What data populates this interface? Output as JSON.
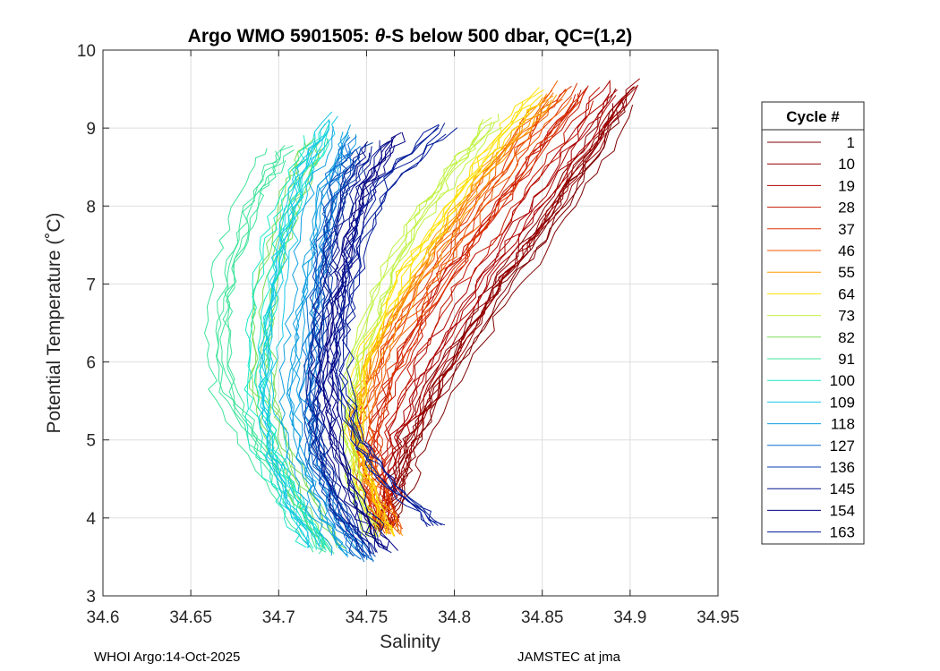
{
  "chart_data": {
    "type": "line",
    "title_prefix": "Argo WMO 5901505: ",
    "title_theta": "θ",
    "title_suffix": "-S below 500 dbar,  QC=(1,2)",
    "xlabel": "Salinity",
    "ylabel": "Potential Temperature (˚C)",
    "xlim": [
      34.6,
      34.95
    ],
    "ylim": [
      3,
      10
    ],
    "xticks": [
      34.6,
      34.65,
      34.7,
      34.75,
      34.8,
      34.85,
      34.9,
      34.95
    ],
    "xtick_labels": [
      "34.6",
      "34.65",
      "34.7",
      "34.75",
      "34.8",
      "34.85",
      "34.9",
      "34.95"
    ],
    "yticks": [
      3,
      4,
      5,
      6,
      7,
      8,
      9,
      10
    ],
    "ytick_labels": [
      "3",
      "4",
      "5",
      "6",
      "7",
      "8",
      "9",
      "10"
    ],
    "grid": true,
    "legend_title": "Cycle #",
    "legend_position": "outside-right",
    "series": [
      {
        "name": "1",
        "color": "#7f0000",
        "salinity": [
          34.761,
          34.769,
          34.777,
          34.795,
          34.823,
          34.849,
          34.875,
          34.896
        ],
        "theta": [
          3.82,
          4.4,
          5.0,
          5.8,
          6.8,
          7.6,
          8.5,
          9.4
        ]
      },
      {
        "name": "10",
        "color": "#950000",
        "salinity": [
          34.758,
          34.765,
          34.773,
          34.79,
          34.817,
          34.843,
          34.87,
          34.9
        ],
        "theta": [
          3.86,
          4.45,
          5.05,
          5.85,
          6.85,
          7.7,
          8.6,
          9.6
        ]
      },
      {
        "name": "19",
        "color": "#ab0000",
        "salinity": [
          34.754,
          34.76,
          34.767,
          34.783,
          34.808,
          34.834,
          34.862,
          34.89
        ],
        "theta": [
          3.84,
          4.45,
          5.1,
          5.9,
          6.85,
          7.7,
          8.6,
          9.5
        ]
      },
      {
        "name": "28",
        "color": "#c31500",
        "salinity": [
          34.76,
          34.755,
          34.758,
          34.772,
          34.795,
          34.822,
          34.85,
          34.878
        ],
        "theta": [
          3.9,
          4.5,
          5.15,
          5.95,
          6.9,
          7.75,
          8.6,
          9.45
        ]
      },
      {
        "name": "37",
        "color": "#dc3200",
        "salinity": [
          34.762,
          34.752,
          34.75,
          34.763,
          34.787,
          34.812,
          34.84,
          34.868
        ],
        "theta": [
          3.88,
          4.5,
          5.15,
          6.0,
          6.95,
          7.8,
          8.7,
          9.5
        ]
      },
      {
        "name": "46",
        "color": "#f05a00",
        "salinity": [
          34.764,
          34.751,
          34.746,
          34.757,
          34.781,
          34.806,
          34.832,
          34.86
        ],
        "theta": [
          3.8,
          4.5,
          5.15,
          6.05,
          7.0,
          7.85,
          8.75,
          9.5
        ]
      },
      {
        "name": "55",
        "color": "#ff9a00",
        "salinity": [
          34.766,
          34.752,
          34.744,
          34.755,
          34.778,
          34.802,
          34.828,
          34.856
        ],
        "theta": [
          3.78,
          4.5,
          5.2,
          6.1,
          7.05,
          7.9,
          8.75,
          9.45
        ]
      },
      {
        "name": "64",
        "color": "#ffe000",
        "salinity": [
          34.762,
          34.75,
          34.743,
          34.75,
          34.77,
          34.795,
          34.82,
          34.846
        ],
        "theta": [
          3.76,
          4.45,
          5.2,
          6.1,
          7.05,
          7.9,
          8.7,
          9.4
        ]
      },
      {
        "name": "73",
        "color": "#bff23f",
        "salinity": [
          34.75,
          34.742,
          34.737,
          34.742,
          34.758,
          34.778,
          34.8,
          34.82
        ],
        "theta": [
          3.75,
          4.4,
          5.2,
          6.1,
          7.05,
          7.9,
          8.55,
          9.1
        ]
      },
      {
        "name": "82",
        "color": "#7fdd5a",
        "salinity": [
          34.73,
          34.715,
          34.7,
          34.69,
          34.69,
          34.698,
          34.71,
          34.72
        ],
        "theta": [
          3.6,
          4.2,
          4.9,
          5.7,
          6.6,
          7.5,
          8.3,
          8.8
        ]
      },
      {
        "name": "91",
        "color": "#3fe39a",
        "salinity": [
          34.725,
          34.708,
          34.688,
          34.668,
          34.664,
          34.672,
          34.685,
          34.7
        ],
        "theta": [
          3.55,
          4.1,
          4.8,
          5.6,
          6.5,
          7.4,
          8.2,
          8.7
        ]
      },
      {
        "name": "100",
        "color": "#19e8c8",
        "salinity": [
          34.72,
          34.706,
          34.692,
          34.685,
          34.688,
          34.695,
          34.708,
          34.722
        ],
        "theta": [
          3.6,
          4.2,
          4.9,
          5.7,
          6.6,
          7.5,
          8.3,
          9.0
        ]
      },
      {
        "name": "109",
        "color": "#17c8e6",
        "salinity": [
          34.722,
          34.708,
          34.698,
          34.695,
          34.698,
          34.705,
          34.715,
          34.732
        ],
        "theta": [
          3.62,
          4.2,
          4.9,
          5.7,
          6.6,
          7.5,
          8.4,
          9.1
        ]
      },
      {
        "name": "118",
        "color": "#0f9fe0",
        "salinity": [
          34.74,
          34.724,
          34.712,
          34.708,
          34.712,
          34.718,
          34.726,
          34.74
        ],
        "theta": [
          3.5,
          4.1,
          4.8,
          5.6,
          6.5,
          7.4,
          8.3,
          9.0
        ]
      },
      {
        "name": "127",
        "color": "#0a6fd0",
        "salinity": [
          34.748,
          34.73,
          34.718,
          34.714,
          34.718,
          34.722,
          34.728,
          34.738
        ],
        "theta": [
          3.45,
          4.05,
          4.8,
          5.6,
          6.5,
          7.4,
          8.2,
          8.8
        ]
      },
      {
        "name": "136",
        "color": "#073fae",
        "salinity": [
          34.75,
          34.735,
          34.722,
          34.72,
          34.724,
          34.728,
          34.735,
          34.748
        ],
        "theta": [
          3.5,
          4.1,
          4.85,
          5.65,
          6.5,
          7.4,
          8.2,
          8.7
        ]
      },
      {
        "name": "145",
        "color": "#04148e",
        "salinity": [
          34.755,
          34.738,
          34.726,
          34.724,
          34.728,
          34.734,
          34.742,
          34.755
        ],
        "theta": [
          3.55,
          4.15,
          4.9,
          5.7,
          6.55,
          7.4,
          8.2,
          8.75
        ]
      },
      {
        "name": "154",
        "color": "#020080",
        "salinity": [
          34.76,
          34.742,
          34.73,
          34.726,
          34.73,
          34.738,
          34.748,
          34.765
        ],
        "theta": [
          3.6,
          4.2,
          4.95,
          5.75,
          6.6,
          7.45,
          8.25,
          8.85
        ]
      },
      {
        "name": "163",
        "color": "#001a99",
        "salinity": [
          34.79,
          34.765,
          34.745,
          34.735,
          34.738,
          34.745,
          34.76,
          34.795
        ],
        "theta": [
          3.9,
          4.4,
          5.0,
          5.8,
          6.6,
          7.5,
          8.3,
          9.0
        ]
      }
    ]
  },
  "footer": {
    "left": "WHOI Argo:14-Oct-2025",
    "right": "JAMSTEC at jma"
  }
}
